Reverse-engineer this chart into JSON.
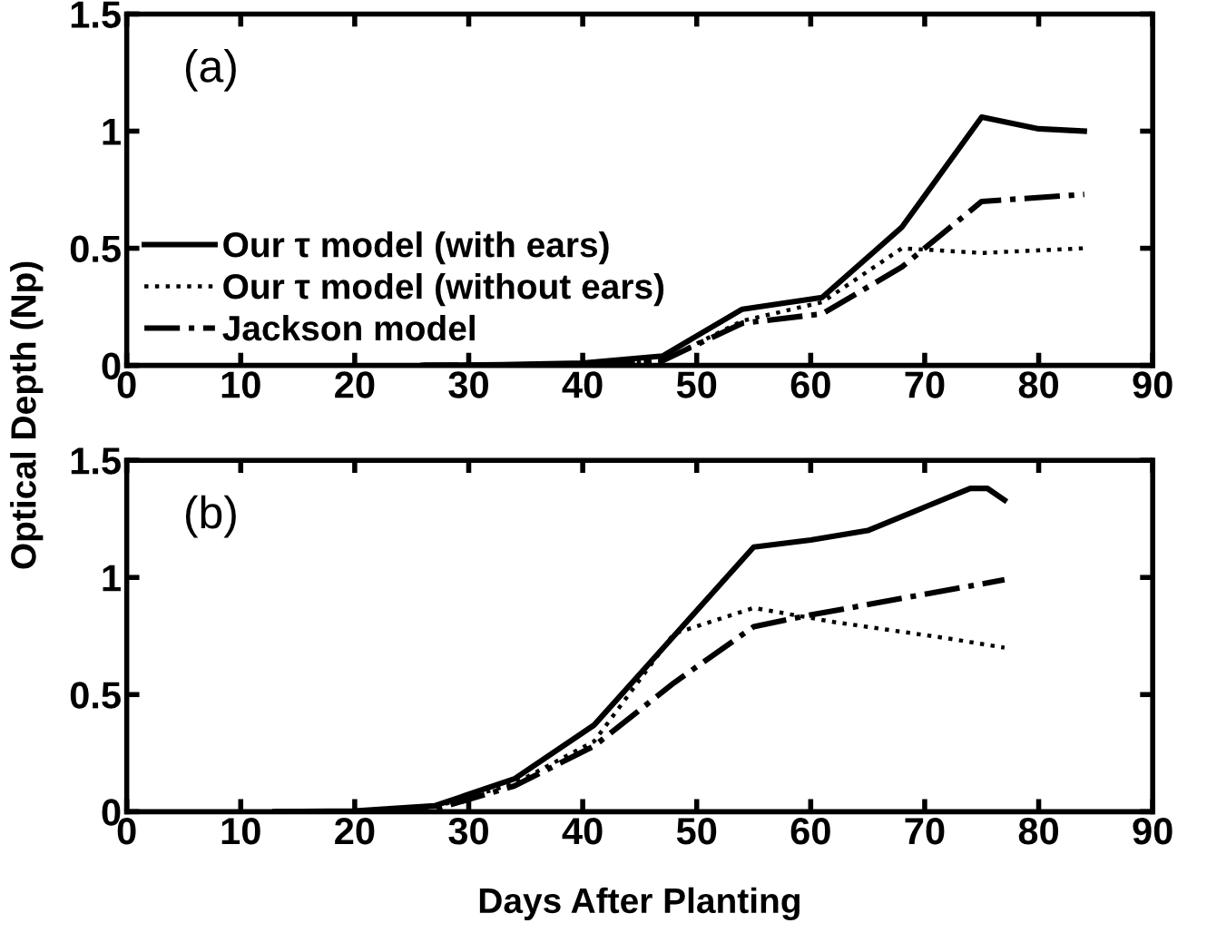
{
  "chart_data": [
    {
      "type": "line",
      "ylabel": "Optical Depth (Np)",
      "annotations": [
        "(a)"
      ],
      "xlim": [
        0,
        90
      ],
      "ylim": [
        0,
        1.5
      ],
      "xticks": [
        0,
        10,
        20,
        30,
        40,
        50,
        60,
        70,
        80,
        90
      ],
      "yticks": [
        0,
        0.5,
        1,
        1.5
      ],
      "grid": false,
      "legend": "bottom left",
      "marker": "none",
      "series": [
        {
          "name": "Our τ model (with ears)",
          "color": "#000000",
          "line_style": "solid",
          "x": [
            26,
            33,
            40,
            47,
            54,
            61,
            68,
            75,
            80,
            84
          ],
          "values": [
            0,
            0.003,
            0.01,
            0.04,
            0.24,
            0.29,
            0.59,
            1.06,
            1.01,
            1.0
          ]
        },
        {
          "name": "Our τ model (without ears)",
          "color": "#000000",
          "line_style": "dotted",
          "x": [
            26,
            33,
            40,
            47,
            54,
            61,
            68,
            75,
            84
          ],
          "values": [
            0,
            0.002,
            0.005,
            0.02,
            0.19,
            0.27,
            0.5,
            0.48,
            0.5
          ]
        },
        {
          "name": "Jackson model",
          "color": "#000000",
          "line_style": "dashdot",
          "x": [
            26,
            33,
            40,
            47,
            54,
            61,
            68,
            75,
            84
          ],
          "values": [
            0,
            0.002,
            0.005,
            0.02,
            0.18,
            0.22,
            0.42,
            0.7,
            0.73
          ]
        }
      ]
    },
    {
      "type": "line",
      "xlabel": "Days After Planting",
      "annotations": [
        "(b)"
      ],
      "xlim": [
        0,
        90
      ],
      "ylim": [
        0,
        1.5
      ],
      "xticks": [
        0,
        10,
        20,
        30,
        40,
        50,
        60,
        70,
        80,
        90
      ],
      "yticks": [
        0,
        0.5,
        1,
        1.5
      ],
      "grid": false,
      "marker": "none",
      "series": [
        {
          "color": "#000000",
          "line_style": "solid",
          "x": [
            13,
            20,
            27,
            34,
            41,
            48,
            55,
            60,
            65,
            70,
            74,
            75.5,
            77
          ],
          "values": [
            0,
            0.003,
            0.025,
            0.14,
            0.37,
            0.75,
            1.13,
            1.16,
            1.2,
            1.3,
            1.38,
            1.38,
            1.33
          ]
        },
        {
          "color": "#000000",
          "line_style": "dotted",
          "x": [
            13,
            20,
            27,
            34,
            41,
            48,
            55,
            62,
            72,
            77
          ],
          "values": [
            0,
            0.003,
            0.02,
            0.12,
            0.3,
            0.76,
            0.87,
            0.81,
            0.74,
            0.7
          ]
        },
        {
          "color": "#000000",
          "line_style": "dashdot",
          "x": [
            13,
            20,
            27,
            34,
            41,
            48,
            55,
            60,
            77
          ],
          "values": [
            0,
            0,
            0.01,
            0.11,
            0.28,
            0.55,
            0.79,
            0.84,
            0.99
          ]
        }
      ]
    }
  ]
}
